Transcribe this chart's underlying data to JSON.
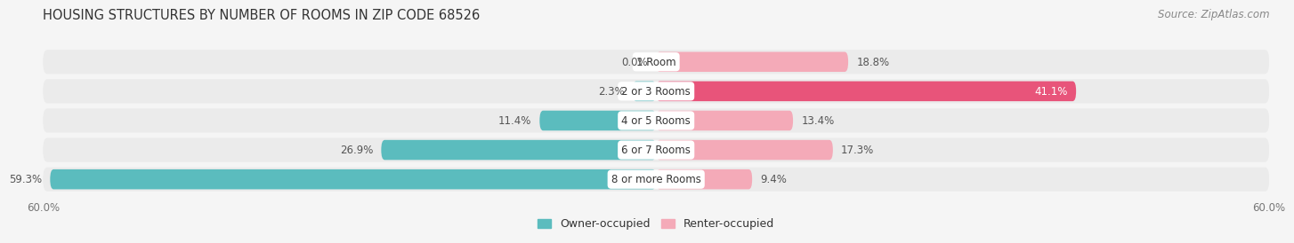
{
  "title": "HOUSING STRUCTURES BY NUMBER OF ROOMS IN ZIP CODE 68526",
  "source": "Source: ZipAtlas.com",
  "categories": [
    "1 Room",
    "2 or 3 Rooms",
    "4 or 5 Rooms",
    "6 or 7 Rooms",
    "8 or more Rooms"
  ],
  "owner_values": [
    0.0,
    2.3,
    11.4,
    26.9,
    59.3
  ],
  "renter_values": [
    18.8,
    41.1,
    13.4,
    17.3,
    9.4
  ],
  "owner_color": "#5bbcbe",
  "renter_colors": [
    "#f4aab8",
    "#e8547a",
    "#f4aab8",
    "#f4aab8",
    "#f4aab8"
  ],
  "bar_bg_color": "#e2e2e2",
  "row_bg_color": "#ebebeb",
  "background_color": "#f5f5f5",
  "xlim": 60.0,
  "title_fontsize": 10.5,
  "source_fontsize": 8.5,
  "label_fontsize": 8.5,
  "category_fontsize": 8.5,
  "axis_label_fontsize": 8.5,
  "legend_fontsize": 9
}
